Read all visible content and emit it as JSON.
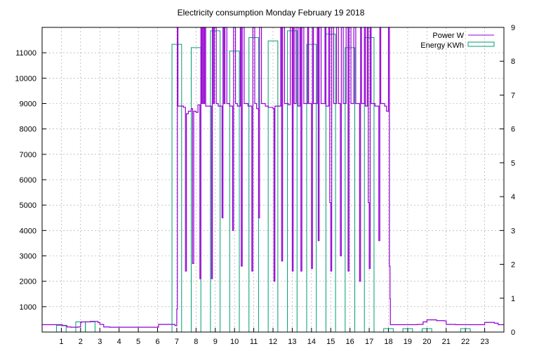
{
  "chart_data": {
    "type": "line",
    "title": "Electricity consumption Monday February 19 2018",
    "xlabel": "",
    "ylabel": "",
    "y2label": "",
    "xlim": [
      0,
      24
    ],
    "ylim": [
      0,
      12000
    ],
    "y2lim": [
      0,
      9
    ],
    "x_ticks": [
      1,
      2,
      3,
      4,
      5,
      6,
      7,
      8,
      9,
      10,
      11,
      12,
      13,
      14,
      15,
      16,
      17,
      18,
      19,
      20,
      21,
      22,
      23
    ],
    "y_ticks": [
      1000,
      2000,
      3000,
      4000,
      5000,
      6000,
      7000,
      8000,
      9000,
      10000,
      11000
    ],
    "y2_ticks": [
      0,
      1,
      2,
      3,
      4,
      5,
      6,
      7,
      8,
      9
    ],
    "grid": true,
    "legend_position": "top-right",
    "colors": {
      "power": "#9400d3",
      "energy": "#009e73"
    },
    "series": [
      {
        "name": "Power W",
        "axis": "y",
        "style": "step",
        "points": [
          [
            0,
            290
          ],
          [
            1,
            290
          ],
          [
            1.05,
            250
          ],
          [
            1.3,
            200
          ],
          [
            1.5,
            190
          ],
          [
            1.85,
            200
          ],
          [
            2,
            380
          ],
          [
            2.05,
            400
          ],
          [
            2.5,
            420
          ],
          [
            2.9,
            380
          ],
          [
            3,
            300
          ],
          [
            3.2,
            200
          ],
          [
            3.5,
            190
          ],
          [
            4,
            190
          ],
          [
            5,
            190
          ],
          [
            6,
            190
          ],
          [
            6.05,
            300
          ],
          [
            6.5,
            300
          ],
          [
            6.9,
            260
          ],
          [
            7.0,
            900
          ],
          [
            7.03,
            12000
          ],
          [
            7.06,
            8900
          ],
          [
            7.3,
            8900
          ],
          [
            7.35,
            8850
          ],
          [
            7.45,
            2400
          ],
          [
            7.5,
            8600
          ],
          [
            7.6,
            8700
          ],
          [
            7.75,
            8800
          ],
          [
            7.82,
            2700
          ],
          [
            7.88,
            8700
          ],
          [
            8.0,
            8650
          ],
          [
            8.1,
            8950
          ],
          [
            8.2,
            2100
          ],
          [
            8.25,
            12000
          ],
          [
            8.3,
            9000
          ],
          [
            8.35,
            12000
          ],
          [
            8.4,
            9000
          ],
          [
            8.45,
            12000
          ],
          [
            8.5,
            8900
          ],
          [
            8.6,
            8900
          ],
          [
            8.8,
            2100
          ],
          [
            8.85,
            12000
          ],
          [
            8.9,
            9000
          ],
          [
            8.95,
            12000
          ],
          [
            9.05,
            9000
          ],
          [
            9.15,
            8900
          ],
          [
            9.35,
            4500
          ],
          [
            9.4,
            12000
          ],
          [
            9.45,
            9000
          ],
          [
            9.5,
            12000
          ],
          [
            9.6,
            9000
          ],
          [
            9.75,
            8900
          ],
          [
            9.9,
            4000
          ],
          [
            9.95,
            12000
          ],
          [
            10.05,
            9000
          ],
          [
            10.15,
            8900
          ],
          [
            10.3,
            12000
          ],
          [
            10.35,
            2600
          ],
          [
            10.4,
            12000
          ],
          [
            10.5,
            9000
          ],
          [
            10.7,
            8900
          ],
          [
            10.9,
            2400
          ],
          [
            10.95,
            12000
          ],
          [
            11.05,
            9000
          ],
          [
            11.15,
            8800
          ],
          [
            11.25,
            4500
          ],
          [
            11.3,
            12000
          ],
          [
            11.4,
            9000
          ],
          [
            11.6,
            8900
          ],
          [
            11.75,
            8850
          ],
          [
            12.0,
            8800
          ],
          [
            12.05,
            2000
          ],
          [
            12.1,
            8900
          ],
          [
            12.3,
            8900
          ],
          [
            12.4,
            12000
          ],
          [
            12.45,
            2800
          ],
          [
            12.5,
            12000
          ],
          [
            12.6,
            9000
          ],
          [
            12.8,
            8950
          ],
          [
            12.9,
            12000
          ],
          [
            13.0,
            2400
          ],
          [
            13.05,
            12000
          ],
          [
            13.1,
            9000
          ],
          [
            13.2,
            12000
          ],
          [
            13.3,
            8900
          ],
          [
            13.4,
            12000
          ],
          [
            13.45,
            2400
          ],
          [
            13.5,
            12000
          ],
          [
            13.6,
            9000
          ],
          [
            13.8,
            12000
          ],
          [
            13.85,
            9000
          ],
          [
            14.0,
            2500
          ],
          [
            14.05,
            12000
          ],
          [
            14.1,
            9000
          ],
          [
            14.3,
            12000
          ],
          [
            14.35,
            3600
          ],
          [
            14.4,
            12000
          ],
          [
            14.5,
            9000
          ],
          [
            14.7,
            12000
          ],
          [
            14.75,
            8900
          ],
          [
            14.9,
            12000
          ],
          [
            14.95,
            5100
          ],
          [
            15.0,
            2400
          ],
          [
            15.05,
            12000
          ],
          [
            15.15,
            9000
          ],
          [
            15.3,
            12000
          ],
          [
            15.4,
            9000
          ],
          [
            15.5,
            3000
          ],
          [
            15.55,
            12000
          ],
          [
            15.65,
            9000
          ],
          [
            15.8,
            12000
          ],
          [
            15.9,
            2400
          ],
          [
            15.95,
            12000
          ],
          [
            16.05,
            9000
          ],
          [
            16.2,
            12000
          ],
          [
            16.3,
            9000
          ],
          [
            16.5,
            2000
          ],
          [
            16.55,
            12000
          ],
          [
            16.6,
            9000
          ],
          [
            16.75,
            12000
          ],
          [
            16.8,
            8900
          ],
          [
            16.9,
            12000
          ],
          [
            16.95,
            5100
          ],
          [
            17.0,
            2500
          ],
          [
            17.05,
            12000
          ],
          [
            17.1,
            9000
          ],
          [
            17.3,
            8900
          ],
          [
            17.5,
            3600
          ],
          [
            17.55,
            12000
          ],
          [
            17.6,
            9000
          ],
          [
            17.8,
            8900
          ],
          [
            17.9,
            8700
          ],
          [
            18.0,
            12000
          ],
          [
            18.05,
            2600
          ],
          [
            18.08,
            1300
          ],
          [
            18.1,
            290
          ],
          [
            18.5,
            290
          ],
          [
            19.0,
            290
          ],
          [
            19.5,
            300
          ],
          [
            19.8,
            400
          ],
          [
            20.0,
            480
          ],
          [
            20.5,
            450
          ],
          [
            20.9,
            440
          ],
          [
            21.0,
            300
          ],
          [
            21.5,
            290
          ],
          [
            22.0,
            290
          ],
          [
            22.9,
            290
          ],
          [
            23.0,
            380
          ],
          [
            23.5,
            350
          ],
          [
            23.7,
            290
          ],
          [
            24,
            290
          ]
        ]
      },
      {
        "name": "Energy KWh",
        "axis": "y2",
        "style": "hist",
        "points": [
          [
            1,
            0.2
          ],
          [
            2,
            0.3
          ],
          [
            2.5,
            0.3
          ],
          [
            7,
            8.5
          ],
          [
            8,
            8.4
          ],
          [
            9,
            8.9
          ],
          [
            10,
            8.3
          ],
          [
            11,
            8.7
          ],
          [
            12,
            8.6
          ],
          [
            13,
            8.9
          ],
          [
            14,
            8.5
          ],
          [
            15,
            8.8
          ],
          [
            16,
            8.4
          ],
          [
            17,
            8.7
          ],
          [
            18,
            0.1
          ],
          [
            19,
            0.1
          ],
          [
            20,
            0.1
          ],
          [
            22,
            0.1
          ]
        ]
      }
    ]
  }
}
